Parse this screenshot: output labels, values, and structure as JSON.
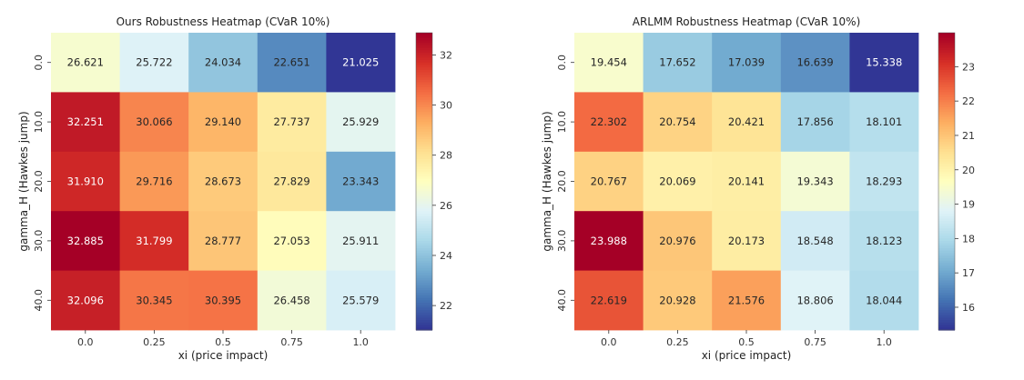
{
  "chart_data": [
    {
      "type": "heatmap",
      "title": "Ours Robustness Heatmap (CVaR 10%)",
      "xlabel": "xi (price impact)",
      "ylabel": "gamma_H (Hawkes jump)",
      "x_categories": [
        "0.0",
        "0.25",
        "0.5",
        "0.75",
        "1.0"
      ],
      "y_categories": [
        "0.0",
        "10.0",
        "20.0",
        "30.0",
        "40.0"
      ],
      "values": [
        [
          26.621,
          25.722,
          24.034,
          22.651,
          21.025
        ],
        [
          32.251,
          30.066,
          29.14,
          27.737,
          25.929
        ],
        [
          31.91,
          29.716,
          28.673,
          27.829,
          23.343
        ],
        [
          32.885,
          31.799,
          28.777,
          27.053,
          25.911
        ],
        [
          32.096,
          30.345,
          30.395,
          26.458,
          25.579
        ]
      ],
      "colorbar_ticks": [
        22,
        24,
        26,
        28,
        30,
        32
      ],
      "colorbar_ticks_label": [
        "22",
        "24",
        "26",
        "28",
        "30",
        "32"
      ],
      "colormap": "RdYlBu_r"
    },
    {
      "type": "heatmap",
      "title": "ARLMM Robustness Heatmap (CVaR 10%)",
      "xlabel": "xi (price impact)",
      "ylabel": "gamma_H (Hawkes jump)",
      "x_categories": [
        "0.0",
        "0.25",
        "0.5",
        "0.75",
        "1.0"
      ],
      "y_categories": [
        "0.0",
        "10.0",
        "20.0",
        "30.0",
        "40.0"
      ],
      "values": [
        [
          19.454,
          17.652,
          17.039,
          16.639,
          15.338
        ],
        [
          22.302,
          20.754,
          20.421,
          17.856,
          18.101
        ],
        [
          20.767,
          20.069,
          20.141,
          19.343,
          18.293
        ],
        [
          23.988,
          20.976,
          20.173,
          18.548,
          18.123
        ],
        [
          22.619,
          20.928,
          21.576,
          18.806,
          18.044
        ]
      ],
      "colorbar_ticks": [
        16,
        17,
        18,
        19,
        20,
        21,
        22,
        23
      ],
      "colorbar_ticks_label": [
        "16",
        "17",
        "18",
        "19",
        "20",
        "21",
        "22",
        "23"
      ],
      "colormap": "RdYlBu_r"
    }
  ]
}
